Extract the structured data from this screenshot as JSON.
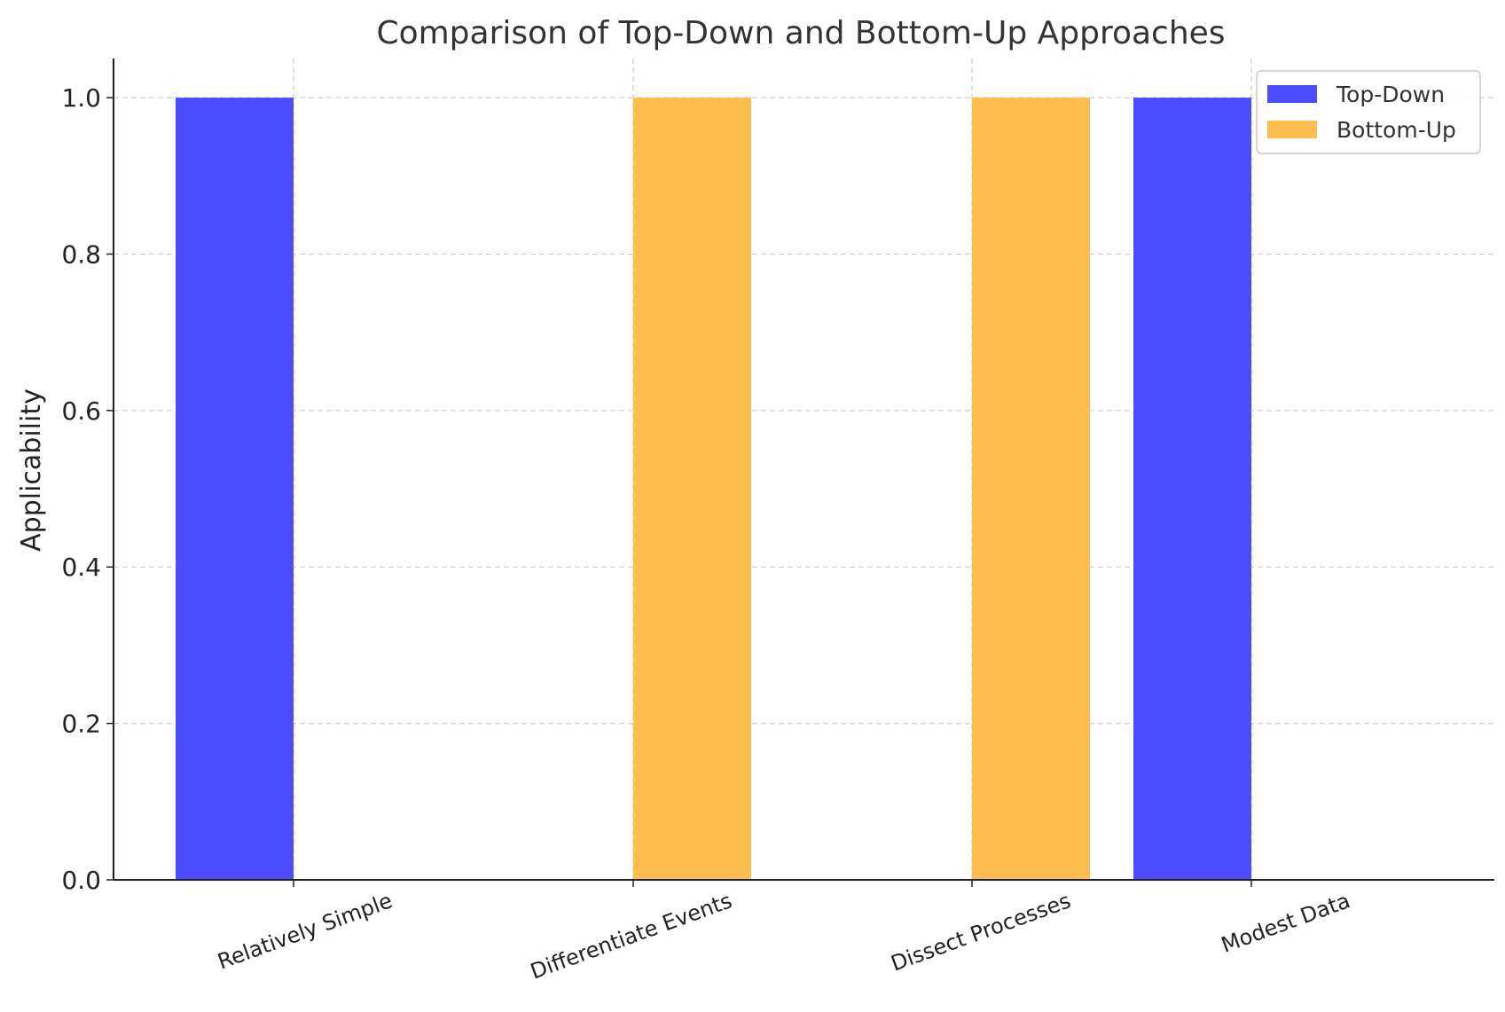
{
  "chart_data": {
    "type": "bar",
    "title": "Comparison of Top-Down and Bottom-Up Approaches",
    "xlabel": "",
    "ylabel": "Applicability",
    "categories": [
      "Relatively Simple",
      "Differentiate Events",
      "Dissect Processes",
      "Modest Data"
    ],
    "series": [
      {
        "name": "Top-Down",
        "values": [
          1,
          0,
          0,
          1
        ],
        "color": "#4b4bff"
      },
      {
        "name": "Bottom-Up",
        "values": [
          0,
          1,
          1,
          0
        ],
        "color": "#fdbd4f"
      }
    ],
    "ylim": [
      0,
      1.05
    ],
    "yticks": [
      0.0,
      0.2,
      0.4,
      0.6,
      0.8,
      1.0
    ],
    "ytick_labels": [
      "0.0",
      "0.2",
      "0.4",
      "0.6",
      "0.8",
      "1.0"
    ],
    "grid": true,
    "legend_position": "top-right"
  }
}
